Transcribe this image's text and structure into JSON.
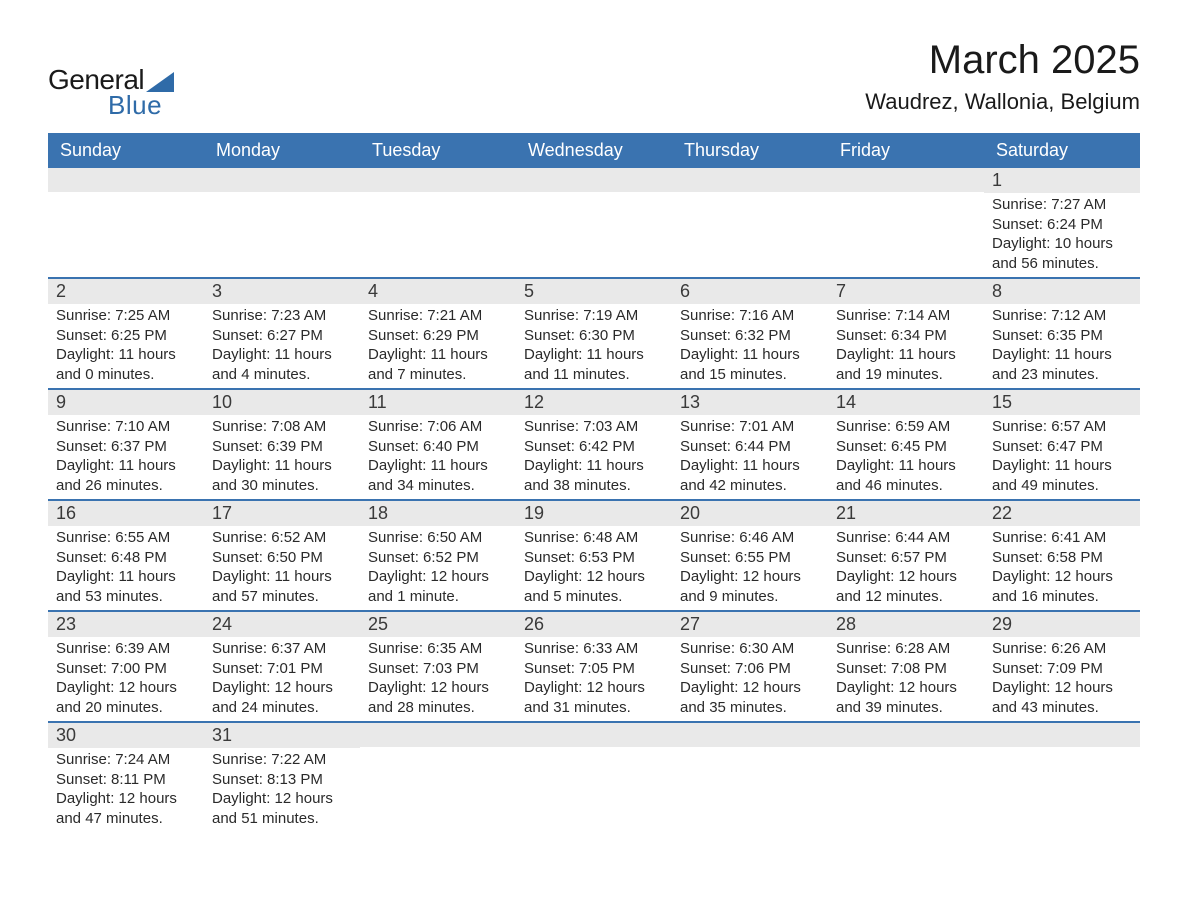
{
  "logo": {
    "text_general": "General",
    "text_blue": "Blue"
  },
  "title": "March 2025",
  "location": "Waudrez, Wallonia, Belgium",
  "colors": {
    "header_bg": "#3a73b0",
    "header_text": "#ffffff",
    "daynum_bg": "#e9e9e9",
    "body_text": "#2a2a2a",
    "border": "#3a73b0",
    "logo_blue": "#2f6ba8"
  },
  "day_headers": [
    "Sunday",
    "Monday",
    "Tuesday",
    "Wednesday",
    "Thursday",
    "Friday",
    "Saturday"
  ],
  "labels": {
    "sunrise": "Sunrise:",
    "sunset": "Sunset:",
    "daylight": "Daylight:"
  },
  "weeks": [
    [
      {
        "blank": true
      },
      {
        "blank": true
      },
      {
        "blank": true
      },
      {
        "blank": true
      },
      {
        "blank": true
      },
      {
        "blank": true
      },
      {
        "day": "1",
        "sunrise": "7:27 AM",
        "sunset": "6:24 PM",
        "daylight_l1": "10 hours",
        "daylight_l2": "and 56 minutes."
      }
    ],
    [
      {
        "day": "2",
        "sunrise": "7:25 AM",
        "sunset": "6:25 PM",
        "daylight_l1": "11 hours",
        "daylight_l2": "and 0 minutes."
      },
      {
        "day": "3",
        "sunrise": "7:23 AM",
        "sunset": "6:27 PM",
        "daylight_l1": "11 hours",
        "daylight_l2": "and 4 minutes."
      },
      {
        "day": "4",
        "sunrise": "7:21 AM",
        "sunset": "6:29 PM",
        "daylight_l1": "11 hours",
        "daylight_l2": "and 7 minutes."
      },
      {
        "day": "5",
        "sunrise": "7:19 AM",
        "sunset": "6:30 PM",
        "daylight_l1": "11 hours",
        "daylight_l2": "and 11 minutes."
      },
      {
        "day": "6",
        "sunrise": "7:16 AM",
        "sunset": "6:32 PM",
        "daylight_l1": "11 hours",
        "daylight_l2": "and 15 minutes."
      },
      {
        "day": "7",
        "sunrise": "7:14 AM",
        "sunset": "6:34 PM",
        "daylight_l1": "11 hours",
        "daylight_l2": "and 19 minutes."
      },
      {
        "day": "8",
        "sunrise": "7:12 AM",
        "sunset": "6:35 PM",
        "daylight_l1": "11 hours",
        "daylight_l2": "and 23 minutes."
      }
    ],
    [
      {
        "day": "9",
        "sunrise": "7:10 AM",
        "sunset": "6:37 PM",
        "daylight_l1": "11 hours",
        "daylight_l2": "and 26 minutes."
      },
      {
        "day": "10",
        "sunrise": "7:08 AM",
        "sunset": "6:39 PM",
        "daylight_l1": "11 hours",
        "daylight_l2": "and 30 minutes."
      },
      {
        "day": "11",
        "sunrise": "7:06 AM",
        "sunset": "6:40 PM",
        "daylight_l1": "11 hours",
        "daylight_l2": "and 34 minutes."
      },
      {
        "day": "12",
        "sunrise": "7:03 AM",
        "sunset": "6:42 PM",
        "daylight_l1": "11 hours",
        "daylight_l2": "and 38 minutes."
      },
      {
        "day": "13",
        "sunrise": "7:01 AM",
        "sunset": "6:44 PM",
        "daylight_l1": "11 hours",
        "daylight_l2": "and 42 minutes."
      },
      {
        "day": "14",
        "sunrise": "6:59 AM",
        "sunset": "6:45 PM",
        "daylight_l1": "11 hours",
        "daylight_l2": "and 46 minutes."
      },
      {
        "day": "15",
        "sunrise": "6:57 AM",
        "sunset": "6:47 PM",
        "daylight_l1": "11 hours",
        "daylight_l2": "and 49 minutes."
      }
    ],
    [
      {
        "day": "16",
        "sunrise": "6:55 AM",
        "sunset": "6:48 PM",
        "daylight_l1": "11 hours",
        "daylight_l2": "and 53 minutes."
      },
      {
        "day": "17",
        "sunrise": "6:52 AM",
        "sunset": "6:50 PM",
        "daylight_l1": "11 hours",
        "daylight_l2": "and 57 minutes."
      },
      {
        "day": "18",
        "sunrise": "6:50 AM",
        "sunset": "6:52 PM",
        "daylight_l1": "12 hours",
        "daylight_l2": "and 1 minute."
      },
      {
        "day": "19",
        "sunrise": "6:48 AM",
        "sunset": "6:53 PM",
        "daylight_l1": "12 hours",
        "daylight_l2": "and 5 minutes."
      },
      {
        "day": "20",
        "sunrise": "6:46 AM",
        "sunset": "6:55 PM",
        "daylight_l1": "12 hours",
        "daylight_l2": "and 9 minutes."
      },
      {
        "day": "21",
        "sunrise": "6:44 AM",
        "sunset": "6:57 PM",
        "daylight_l1": "12 hours",
        "daylight_l2": "and 12 minutes."
      },
      {
        "day": "22",
        "sunrise": "6:41 AM",
        "sunset": "6:58 PM",
        "daylight_l1": "12 hours",
        "daylight_l2": "and 16 minutes."
      }
    ],
    [
      {
        "day": "23",
        "sunrise": "6:39 AM",
        "sunset": "7:00 PM",
        "daylight_l1": "12 hours",
        "daylight_l2": "and 20 minutes."
      },
      {
        "day": "24",
        "sunrise": "6:37 AM",
        "sunset": "7:01 PM",
        "daylight_l1": "12 hours",
        "daylight_l2": "and 24 minutes."
      },
      {
        "day": "25",
        "sunrise": "6:35 AM",
        "sunset": "7:03 PM",
        "daylight_l1": "12 hours",
        "daylight_l2": "and 28 minutes."
      },
      {
        "day": "26",
        "sunrise": "6:33 AM",
        "sunset": "7:05 PM",
        "daylight_l1": "12 hours",
        "daylight_l2": "and 31 minutes."
      },
      {
        "day": "27",
        "sunrise": "6:30 AM",
        "sunset": "7:06 PM",
        "daylight_l1": "12 hours",
        "daylight_l2": "and 35 minutes."
      },
      {
        "day": "28",
        "sunrise": "6:28 AM",
        "sunset": "7:08 PM",
        "daylight_l1": "12 hours",
        "daylight_l2": "and 39 minutes."
      },
      {
        "day": "29",
        "sunrise": "6:26 AM",
        "sunset": "7:09 PM",
        "daylight_l1": "12 hours",
        "daylight_l2": "and 43 minutes."
      }
    ],
    [
      {
        "day": "30",
        "sunrise": "7:24 AM",
        "sunset": "8:11 PM",
        "daylight_l1": "12 hours",
        "daylight_l2": "and 47 minutes."
      },
      {
        "day": "31",
        "sunrise": "7:22 AM",
        "sunset": "8:13 PM",
        "daylight_l1": "12 hours",
        "daylight_l2": "and 51 minutes."
      },
      {
        "blank": true
      },
      {
        "blank": true
      },
      {
        "blank": true
      },
      {
        "blank": true
      },
      {
        "blank": true
      }
    ]
  ]
}
